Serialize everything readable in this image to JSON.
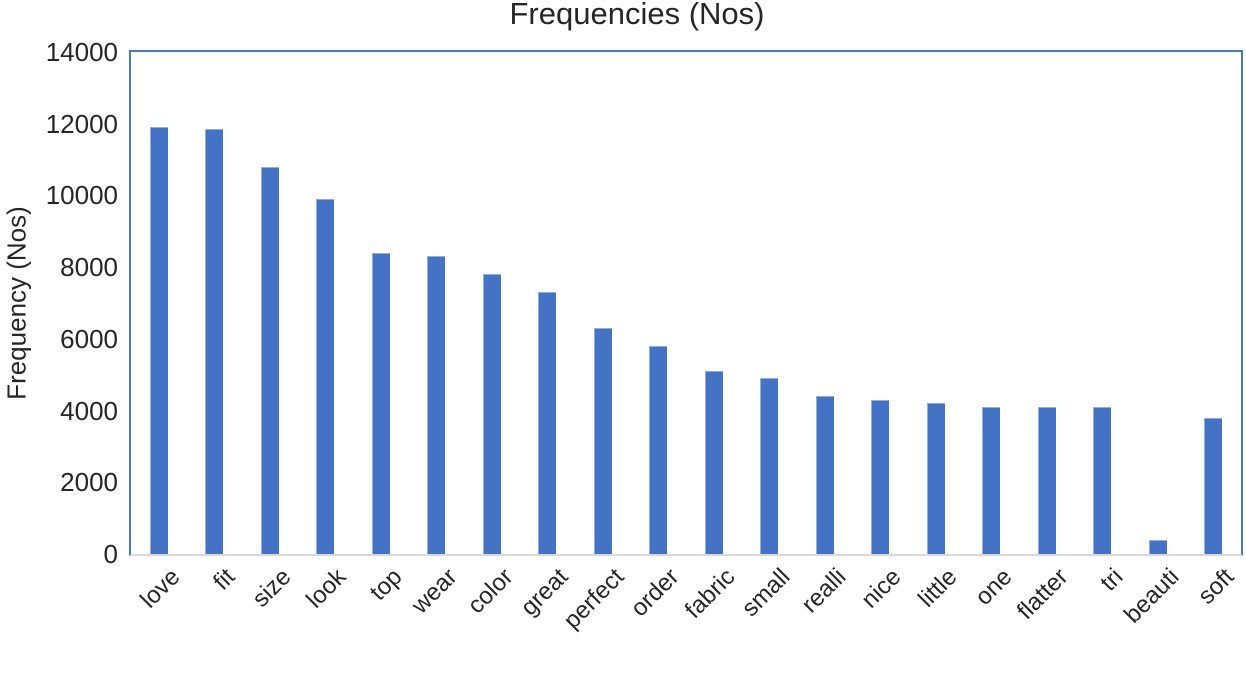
{
  "chart_data": {
    "type": "bar",
    "title": "Frequencies (Nos)",
    "ylabel": "Frequency (Nos)",
    "xlabel": "",
    "categories": [
      "love",
      "fit",
      "size",
      "look",
      "top",
      "wear",
      "color",
      "great",
      "perfect",
      "order",
      "fabric",
      "small",
      "realli",
      "nice",
      "little",
      "one",
      "flatter",
      "tri",
      "beauti",
      "soft"
    ],
    "values": [
      11900,
      11850,
      10800,
      9900,
      8400,
      8300,
      7800,
      7300,
      6300,
      5800,
      5100,
      4900,
      4400,
      4300,
      4200,
      4100,
      4100,
      4100,
      400,
      3800
    ],
    "ylim": [
      0,
      14000
    ],
    "yticks": [
      0,
      2000,
      4000,
      6000,
      8000,
      10000,
      12000,
      14000
    ],
    "grid": false,
    "legend": false,
    "colors": {
      "bar_fill": "#4472C4",
      "bar_edge": "#93ADDB",
      "frame": "#4B79BE",
      "baseline": "#D9D9D9",
      "text": "#262626"
    }
  }
}
